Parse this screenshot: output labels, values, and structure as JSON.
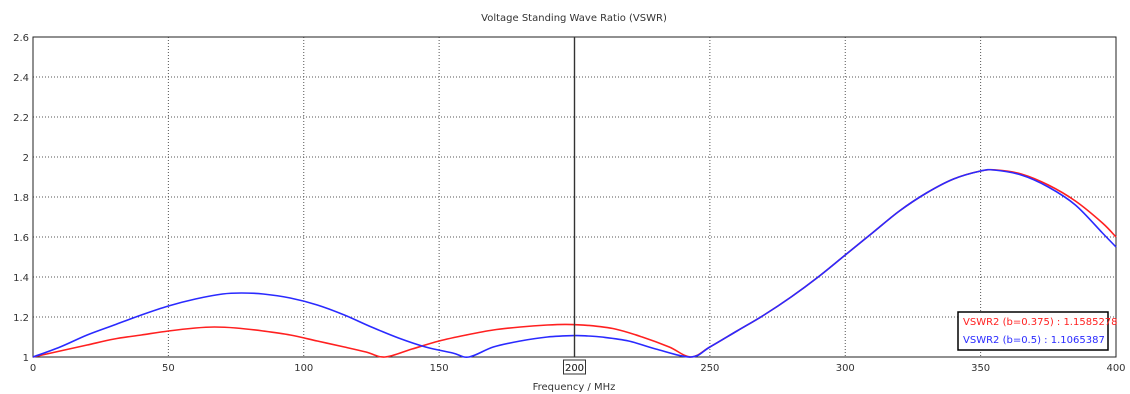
{
  "chart_data": {
    "type": "line",
    "title": "Voltage Standing Wave Ratio (VSWR)",
    "xlabel": "Frequency / MHz",
    "ylabel": "",
    "xlim": [
      0,
      400
    ],
    "ylim": [
      1,
      2.6
    ],
    "x_ticks": [
      0,
      50,
      100,
      150,
      200,
      250,
      300,
      350,
      400
    ],
    "y_ticks": [
      1,
      1.2,
      1.4,
      1.6,
      1.8,
      2,
      2.2,
      2.4,
      2.6
    ],
    "x_tick_labels": [
      "0",
      "50",
      "100",
      "150",
      "200",
      "250",
      "300",
      "350",
      "400"
    ],
    "y_tick_labels": [
      "1",
      "1.2",
      "1.4",
      "1.6",
      "1.8",
      "2",
      "2.2",
      "2.4",
      "2.6"
    ],
    "grid": true,
    "legend_position": "bottom-right",
    "marker": {
      "x": 200,
      "label": "200",
      "color": "#333333"
    },
    "series": [
      {
        "name": "VSWR2 (b=0.375) : 1.1585278",
        "color": "#ff2020",
        "x": [
          0,
          10,
          20,
          30,
          40,
          50,
          60,
          67,
          75,
          85,
          95,
          105,
          115,
          123,
          130,
          140,
          150,
          160,
          170,
          180,
          190,
          197,
          205,
          215,
          225,
          235,
          243,
          250,
          260,
          270,
          280,
          290,
          300,
          310,
          320,
          330,
          340,
          350,
          356,
          365,
          375,
          385,
          395,
          400
        ],
        "y": [
          1.0,
          1.03,
          1.06,
          1.09,
          1.11,
          1.13,
          1.145,
          1.15,
          1.145,
          1.13,
          1.11,
          1.08,
          1.05,
          1.025,
          1.0,
          1.04,
          1.08,
          1.11,
          1.135,
          1.15,
          1.16,
          1.163,
          1.158,
          1.14,
          1.1,
          1.05,
          1.0,
          1.05,
          1.13,
          1.21,
          1.3,
          1.4,
          1.51,
          1.62,
          1.73,
          1.82,
          1.89,
          1.93,
          1.935,
          1.915,
          1.86,
          1.78,
          1.67,
          1.6
        ]
      },
      {
        "name": "VSWR2 (b=0.5) : 1.1065387",
        "color": "#2a2aff",
        "x": [
          0,
          10,
          20,
          30,
          40,
          50,
          60,
          70,
          77,
          85,
          95,
          105,
          115,
          125,
          135,
          145,
          155,
          161,
          170,
          180,
          190,
          200,
          205,
          210,
          220,
          230,
          243,
          250,
          260,
          270,
          280,
          290,
          300,
          310,
          320,
          330,
          340,
          350,
          355,
          365,
          375,
          385,
          395,
          400
        ],
        "y": [
          1.0,
          1.05,
          1.11,
          1.16,
          1.21,
          1.255,
          1.29,
          1.315,
          1.32,
          1.315,
          1.295,
          1.26,
          1.21,
          1.15,
          1.095,
          1.05,
          1.02,
          1.0,
          1.05,
          1.08,
          1.1,
          1.107,
          1.105,
          1.1,
          1.08,
          1.04,
          1.0,
          1.05,
          1.13,
          1.21,
          1.3,
          1.4,
          1.51,
          1.62,
          1.73,
          1.82,
          1.89,
          1.93,
          1.935,
          1.91,
          1.85,
          1.76,
          1.62,
          1.55
        ]
      }
    ]
  }
}
